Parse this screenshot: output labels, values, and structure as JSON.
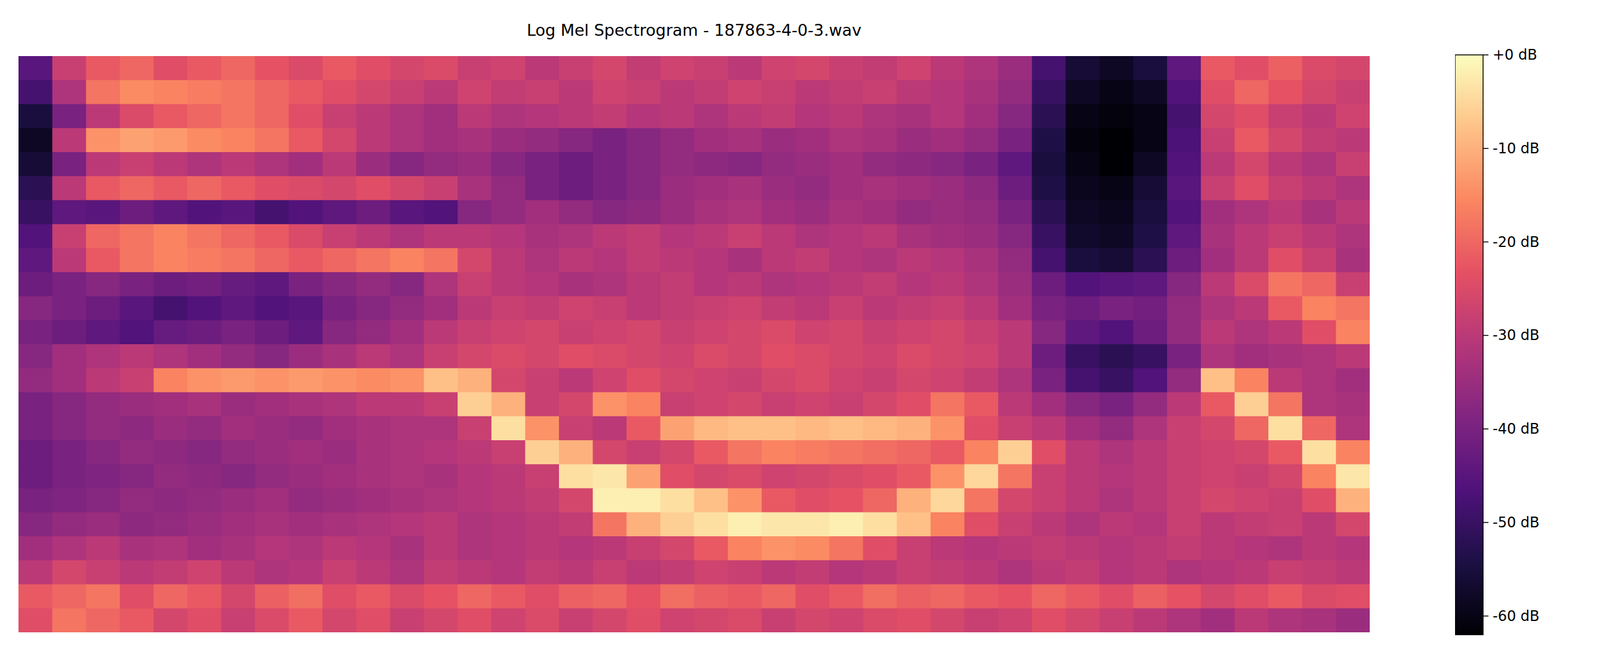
{
  "chart_data": {
    "type": "heatmap",
    "title": "Log Mel Spectrogram - 187863-4-0-3.wav",
    "tick_labels": false,
    "colorbar": {
      "range": [
        -62,
        0
      ],
      "ticks": [
        {
          "value": 0,
          "label": "+0 dB"
        },
        {
          "value": -10,
          "label": "-10 dB"
        },
        {
          "value": -20,
          "label": "-20 dB"
        },
        {
          "value": -30,
          "label": "-30 dB"
        },
        {
          "value": -40,
          "label": "-40 dB"
        },
        {
          "value": -50,
          "label": "-50 dB"
        },
        {
          "value": -60,
          "label": "-60 dB"
        }
      ]
    },
    "cells": [
      [
        -45,
        -28,
        -22,
        -20,
        -24,
        -22,
        -20,
        -23,
        -25,
        -22,
        -24,
        -26,
        -25,
        -28,
        -27,
        -30,
        -28,
        -26,
        -29,
        -27,
        -28,
        -30,
        -27,
        -26,
        -28,
        -29,
        -27,
        -30,
        -32,
        -35,
        -48,
        -56,
        -58,
        -55,
        -44,
        -22,
        -24,
        -21,
        -25,
        -26
      ],
      [
        -48,
        -32,
        -18,
        -15,
        -16,
        -17,
        -18,
        -20,
        -22,
        -24,
        -26,
        -28,
        -30,
        -27,
        -29,
        -28,
        -30,
        -27,
        -28,
        -30,
        -29,
        -27,
        -28,
        -30,
        -29,
        -28,
        -30,
        -31,
        -33,
        -36,
        -50,
        -58,
        -60,
        -58,
        -46,
        -24,
        -20,
        -23,
        -26,
        -28
      ],
      [
        -55,
        -40,
        -30,
        -25,
        -22,
        -20,
        -18,
        -20,
        -24,
        -28,
        -30,
        -32,
        -34,
        -30,
        -32,
        -31,
        -30,
        -29,
        -31,
        -30,
        -32,
        -30,
        -29,
        -31,
        -30,
        -32,
        -33,
        -31,
        -34,
        -38,
        -52,
        -60,
        -61,
        -60,
        -48,
        -26,
        -24,
        -28,
        -30,
        -27
      ],
      [
        -58,
        -30,
        -14,
        -12,
        -13,
        -15,
        -16,
        -18,
        -22,
        -26,
        -30,
        -32,
        -34,
        -33,
        -35,
        -36,
        -38,
        -40,
        -38,
        -36,
        -34,
        -33,
        -35,
        -34,
        -32,
        -33,
        -35,
        -34,
        -36,
        -40,
        -54,
        -61,
        -62,
        -60,
        -47,
        -28,
        -22,
        -26,
        -29,
        -30
      ],
      [
        -56,
        -40,
        -30,
        -28,
        -30,
        -32,
        -30,
        -32,
        -34,
        -30,
        -35,
        -38,
        -36,
        -35,
        -38,
        -40,
        -42,
        -40,
        -38,
        -36,
        -37,
        -38,
        -36,
        -35,
        -34,
        -36,
        -37,
        -38,
        -40,
        -44,
        -55,
        -60,
        -62,
        -58,
        -46,
        -30,
        -26,
        -30,
        -32,
        -28
      ],
      [
        -52,
        -30,
        -22,
        -20,
        -22,
        -20,
        -22,
        -24,
        -25,
        -26,
        -24,
        -26,
        -28,
        -33,
        -36,
        -40,
        -42,
        -40,
        -38,
        -35,
        -34,
        -33,
        -35,
        -36,
        -34,
        -33,
        -34,
        -35,
        -37,
        -42,
        -54,
        -59,
        -60,
        -56,
        -45,
        -28,
        -24,
        -28,
        -30,
        -32
      ],
      [
        -50,
        -44,
        -45,
        -42,
        -44,
        -46,
        -45,
        -48,
        -46,
        -44,
        -42,
        -45,
        -46,
        -38,
        -36,
        -34,
        -36,
        -38,
        -37,
        -35,
        -33,
        -32,
        -34,
        -35,
        -33,
        -34,
        -36,
        -35,
        -36,
        -40,
        -52,
        -58,
        -59,
        -55,
        -46,
        -34,
        -32,
        -30,
        -33,
        -30
      ],
      [
        -46,
        -28,
        -20,
        -18,
        -16,
        -18,
        -20,
        -22,
        -25,
        -28,
        -30,
        -32,
        -30,
        -30,
        -31,
        -33,
        -32,
        -30,
        -29,
        -31,
        -30,
        -28,
        -30,
        -32,
        -31,
        -30,
        -33,
        -34,
        -35,
        -38,
        -50,
        -57,
        -58,
        -54,
        -44,
        -33,
        -30,
        -28,
        -30,
        -32
      ],
      [
        -44,
        -30,
        -22,
        -18,
        -16,
        -17,
        -18,
        -20,
        -22,
        -20,
        -18,
        -16,
        -18,
        -26,
        -30,
        -32,
        -30,
        -31,
        -29,
        -30,
        -31,
        -33,
        -30,
        -29,
        -31,
        -32,
        -30,
        -31,
        -33,
        -36,
        -48,
        -55,
        -56,
        -52,
        -42,
        -34,
        -30,
        -24,
        -28,
        -33
      ],
      [
        -42,
        -40,
        -38,
        -40,
        -42,
        -41,
        -43,
        -44,
        -40,
        -38,
        -36,
        -38,
        -32,
        -28,
        -30,
        -31,
        -33,
        -32,
        -30,
        -29,
        -31,
        -30,
        -32,
        -31,
        -30,
        -29,
        -31,
        -30,
        -32,
        -35,
        -42,
        -46,
        -45,
        -44,
        -38,
        -30,
        -25,
        -18,
        -20,
        -28
      ],
      [
        -38,
        -40,
        -42,
        -45,
        -48,
        -46,
        -44,
        -46,
        -45,
        -40,
        -38,
        -36,
        -34,
        -30,
        -28,
        -29,
        -27,
        -28,
        -30,
        -29,
        -28,
        -27,
        -29,
        -30,
        -28,
        -30,
        -29,
        -28,
        -30,
        -34,
        -40,
        -42,
        -40,
        -41,
        -36,
        -32,
        -30,
        -22,
        -16,
        -18
      ],
      [
        -40,
        -42,
        -44,
        -46,
        -43,
        -42,
        -40,
        -42,
        -44,
        -38,
        -36,
        -34,
        -30,
        -28,
        -27,
        -26,
        -28,
        -27,
        -26,
        -28,
        -27,
        -26,
        -25,
        -27,
        -26,
        -28,
        -27,
        -26,
        -28,
        -30,
        -38,
        -44,
        -46,
        -42,
        -36,
        -30,
        -32,
        -30,
        -24,
        -16
      ],
      [
        -38,
        -34,
        -32,
        -30,
        -32,
        -34,
        -36,
        -38,
        -35,
        -33,
        -30,
        -32,
        -28,
        -26,
        -25,
        -26,
        -24,
        -25,
        -26,
        -27,
        -25,
        -26,
        -24,
        -25,
        -26,
        -27,
        -25,
        -26,
        -27,
        -30,
        -42,
        -50,
        -52,
        -50,
        -40,
        -32,
        -34,
        -33,
        -32,
        -30
      ],
      [
        -36,
        -34,
        -30,
        -28,
        -16,
        -14,
        -13,
        -14,
        -13,
        -14,
        -15,
        -14,
        -8,
        -10,
        -26,
        -28,
        -30,
        -27,
        -24,
        -26,
        -27,
        -28,
        -26,
        -25,
        -27,
        -28,
        -26,
        -27,
        -29,
        -32,
        -40,
        -48,
        -50,
        -46,
        -36,
        -8,
        -16,
        -30,
        -32,
        -34
      ],
      [
        -40,
        -38,
        -36,
        -35,
        -34,
        -33,
        -35,
        -34,
        -33,
        -32,
        -30,
        -30,
        -28,
        -6,
        -10,
        -28,
        -26,
        -14,
        -16,
        -28,
        -27,
        -26,
        -28,
        -27,
        -28,
        -26,
        -24,
        -18,
        -22,
        -30,
        -34,
        -38,
        -40,
        -36,
        -30,
        -22,
        -6,
        -18,
        -32,
        -33
      ],
      [
        -40,
        -38,
        -36,
        -37,
        -35,
        -36,
        -34,
        -35,
        -36,
        -34,
        -33,
        -32,
        -32,
        -28,
        -4,
        -14,
        -28,
        -30,
        -22,
        -12,
        -9,
        -8,
        -8,
        -9,
        -8,
        -9,
        -10,
        -14,
        -24,
        -28,
        -30,
        -34,
        -36,
        -32,
        -28,
        -26,
        -20,
        -4,
        -20,
        -32
      ],
      [
        -42,
        -40,
        -38,
        -36,
        -37,
        -38,
        -36,
        -35,
        -34,
        -35,
        -33,
        -32,
        -31,
        -30,
        -28,
        -6,
        -10,
        -26,
        -28,
        -26,
        -22,
        -18,
        -16,
        -17,
        -18,
        -19,
        -20,
        -22,
        -16,
        -6,
        -24,
        -30,
        -32,
        -30,
        -28,
        -27,
        -26,
        -22,
        -4,
        -16
      ],
      [
        -42,
        -40,
        -39,
        -38,
        -36,
        -37,
        -38,
        -36,
        -35,
        -34,
        -33,
        -32,
        -33,
        -31,
        -30,
        -28,
        -4,
        -3,
        -12,
        -24,
        -26,
        -25,
        -27,
        -26,
        -25,
        -24,
        -22,
        -14,
        -5,
        -18,
        -28,
        -30,
        -31,
        -30,
        -28,
        -27,
        -28,
        -26,
        -16,
        -3
      ],
      [
        -40,
        -39,
        -38,
        -36,
        -37,
        -36,
        -35,
        -34,
        -36,
        -35,
        -34,
        -33,
        -32,
        -31,
        -30,
        -29,
        -26,
        -2,
        -2,
        -4,
        -8,
        -14,
        -22,
        -24,
        -23,
        -20,
        -10,
        -5,
        -18,
        -26,
        -28,
        -30,
        -32,
        -30,
        -28,
        -26,
        -27,
        -28,
        -24,
        -10
      ],
      [
        -38,
        -36,
        -35,
        -37,
        -36,
        -35,
        -34,
        -33,
        -34,
        -33,
        -32,
        -31,
        -30,
        -32,
        -31,
        -30,
        -29,
        -18,
        -10,
        -6,
        -4,
        -2,
        -3,
        -3,
        -2,
        -4,
        -8,
        -16,
        -24,
        -28,
        -30,
        -32,
        -30,
        -31,
        -28,
        -30,
        -29,
        -28,
        -30,
        -26
      ],
      [
        -34,
        -32,
        -30,
        -33,
        -32,
        -34,
        -33,
        -31,
        -32,
        -30,
        -31,
        -33,
        -30,
        -32,
        -31,
        -30,
        -31,
        -30,
        -28,
        -26,
        -22,
        -16,
        -14,
        -15,
        -18,
        -24,
        -28,
        -30,
        -31,
        -30,
        -29,
        -30,
        -31,
        -30,
        -29,
        -30,
        -31,
        -32,
        -30,
        -31
      ],
      [
        -30,
        -26,
        -28,
        -30,
        -29,
        -27,
        -30,
        -32,
        -31,
        -28,
        -30,
        -32,
        -29,
        -30,
        -31,
        -29,
        -30,
        -28,
        -30,
        -29,
        -27,
        -28,
        -30,
        -29,
        -31,
        -30,
        -28,
        -29,
        -30,
        -32,
        -30,
        -29,
        -31,
        -30,
        -32,
        -31,
        -30,
        -28,
        -29,
        -30
      ],
      [
        -22,
        -20,
        -18,
        -24,
        -20,
        -22,
        -26,
        -21,
        -19,
        -24,
        -22,
        -25,
        -23,
        -20,
        -22,
        -24,
        -21,
        -20,
        -23,
        -19,
        -21,
        -22,
        -20,
        -24,
        -22,
        -19,
        -21,
        -20,
        -22,
        -23,
        -20,
        -22,
        -24,
        -21,
        -23,
        -26,
        -24,
        -22,
        -25,
        -24
      ],
      [
        -24,
        -18,
        -20,
        -22,
        -26,
        -24,
        -28,
        -25,
        -22,
        -26,
        -24,
        -28,
        -26,
        -24,
        -27,
        -25,
        -28,
        -26,
        -24,
        -27,
        -26,
        -25,
        -28,
        -26,
        -27,
        -25,
        -24,
        -26,
        -28,
        -27,
        -24,
        -26,
        -28,
        -30,
        -32,
        -34,
        -30,
        -32,
        -33,
        -35
      ]
    ]
  }
}
